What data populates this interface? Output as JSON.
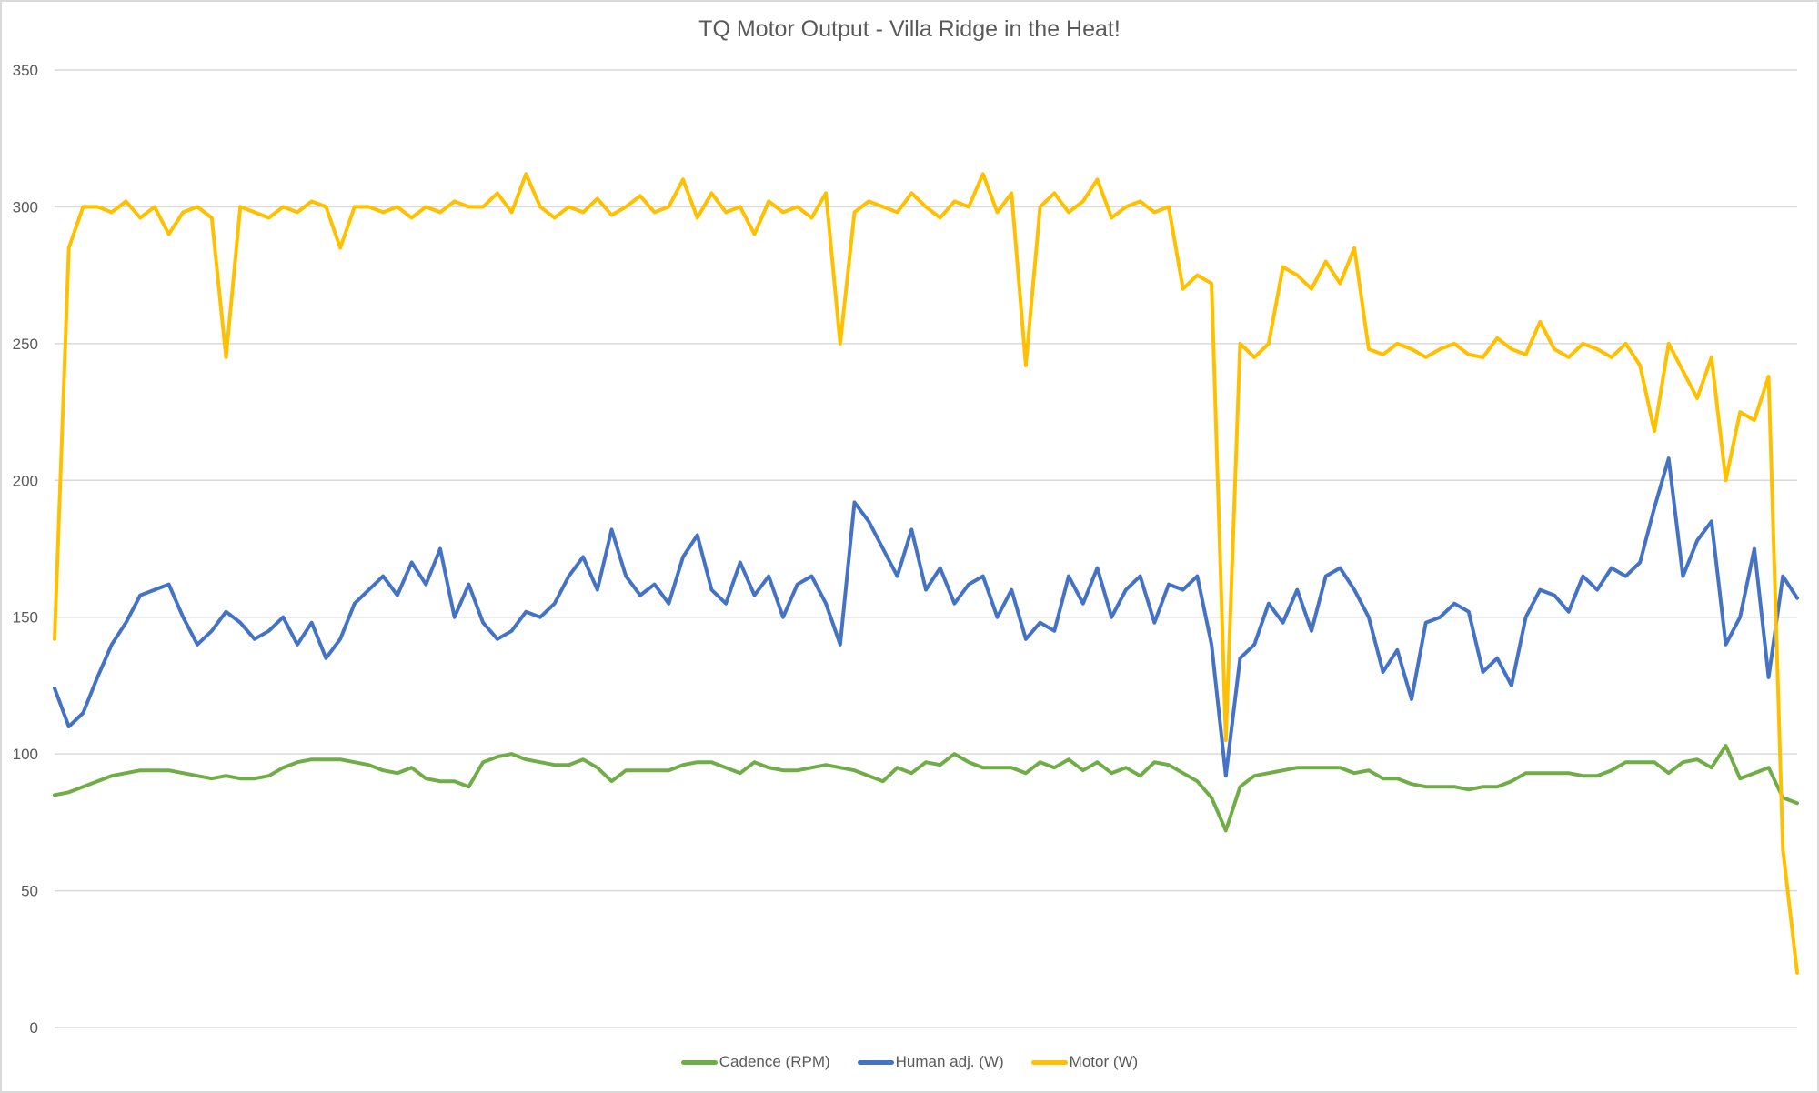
{
  "chart_data": {
    "type": "line",
    "title": "TQ Motor Output - Villa Ridge in the Heat!",
    "xlabel": "",
    "ylabel": "",
    "ylim": [
      0,
      350
    ],
    "yticks": [
      "0",
      "50",
      "100",
      "150",
      "200",
      "250",
      "300",
      "350"
    ],
    "grid": true,
    "legend_position": "bottom",
    "series": [
      {
        "name": "Cadence (RPM)",
        "color": "#70ad47",
        "values": [
          85,
          86,
          88,
          90,
          92,
          93,
          94,
          94,
          94,
          93,
          92,
          91,
          92,
          91,
          91,
          92,
          95,
          97,
          98,
          98,
          98,
          97,
          96,
          94,
          93,
          95,
          91,
          90,
          90,
          88,
          97,
          99,
          100,
          98,
          97,
          96,
          96,
          98,
          95,
          90,
          94,
          94,
          94,
          94,
          96,
          97,
          97,
          95,
          93,
          97,
          95,
          94,
          94,
          95,
          96,
          95,
          94,
          92,
          90,
          95,
          93,
          97,
          96,
          100,
          97,
          95,
          95,
          95,
          93,
          97,
          95,
          98,
          94,
          97,
          93,
          95,
          92,
          97,
          96,
          93,
          90,
          84,
          72,
          88,
          92,
          93,
          94,
          95,
          95,
          95,
          95,
          93,
          94,
          91,
          91,
          89,
          88,
          88,
          88,
          87,
          88,
          88,
          90,
          93,
          93,
          93,
          93,
          92,
          92,
          94,
          97,
          97,
          97,
          93,
          97,
          98,
          95,
          103,
          91,
          93,
          95,
          84,
          82
        ]
      },
      {
        "name": "Human adj. (W)",
        "color": "#4472c4",
        "values": [
          124,
          110,
          115,
          128,
          140,
          148,
          158,
          160,
          162,
          150,
          140,
          145,
          152,
          148,
          142,
          145,
          150,
          140,
          148,
          135,
          142,
          155,
          160,
          165,
          158,
          170,
          162,
          175,
          150,
          162,
          148,
          142,
          145,
          152,
          150,
          155,
          165,
          172,
          160,
          182,
          165,
          158,
          162,
          155,
          172,
          180,
          160,
          155,
          170,
          158,
          165,
          150,
          162,
          165,
          155,
          140,
          192,
          185,
          175,
          165,
          182,
          160,
          168,
          155,
          162,
          165,
          150,
          160,
          142,
          148,
          145,
          165,
          155,
          168,
          150,
          160,
          165,
          148,
          162,
          160,
          165,
          140,
          92,
          135,
          140,
          155,
          148,
          160,
          145,
          165,
          168,
          160,
          150,
          130,
          138,
          120,
          148,
          150,
          155,
          152,
          130,
          135,
          125,
          150,
          160,
          158,
          152,
          165,
          160,
          168,
          165,
          170,
          190,
          208,
          165,
          178,
          185,
          140,
          150,
          175,
          128,
          165,
          157
        ]
      },
      {
        "name": "Motor (W)",
        "color": "#ffc000",
        "values": [
          142,
          285,
          300,
          300,
          298,
          302,
          296,
          300,
          290,
          298,
          300,
          296,
          245,
          300,
          298,
          296,
          300,
          298,
          302,
          300,
          285,
          300,
          300,
          298,
          300,
          296,
          300,
          298,
          302,
          300,
          300,
          305,
          298,
          312,
          300,
          296,
          300,
          298,
          303,
          297,
          300,
          304,
          298,
          300,
          310,
          296,
          305,
          298,
          300,
          290,
          302,
          298,
          300,
          296,
          305,
          250,
          298,
          302,
          300,
          298,
          305,
          300,
          296,
          302,
          300,
          312,
          298,
          305,
          242,
          300,
          305,
          298,
          302,
          310,
          296,
          300,
          302,
          298,
          300,
          270,
          275,
          272,
          105,
          250,
          245,
          250,
          278,
          275,
          270,
          280,
          272,
          285,
          248,
          246,
          250,
          248,
          245,
          248,
          250,
          246,
          245,
          252,
          248,
          246,
          258,
          248,
          245,
          250,
          248,
          245,
          250,
          242,
          218,
          250,
          240,
          230,
          245,
          200,
          225,
          222,
          238,
          65,
          20
        ]
      }
    ]
  }
}
